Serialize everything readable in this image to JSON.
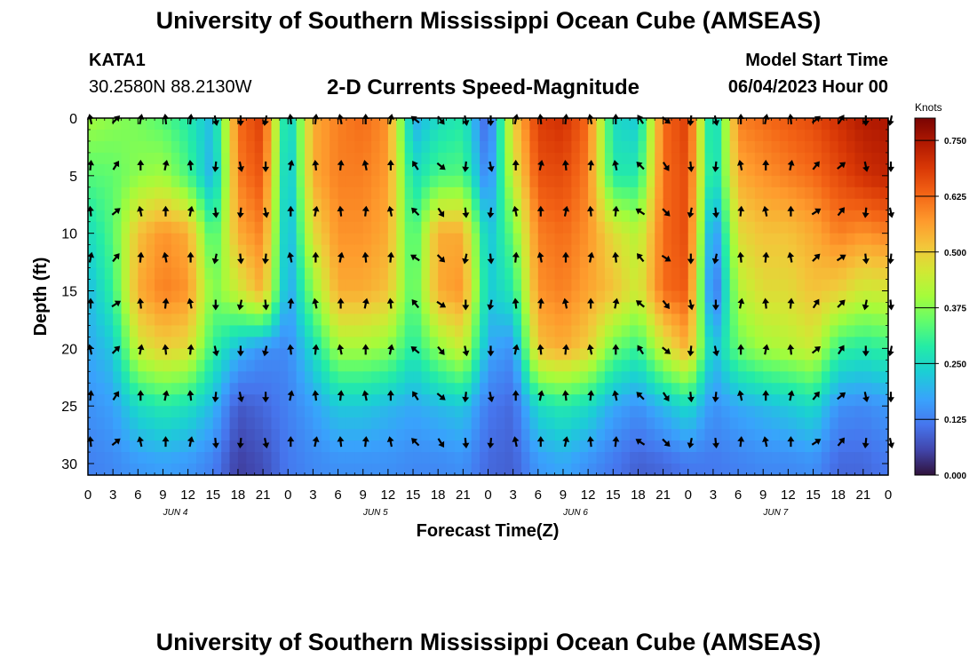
{
  "header": {
    "title": "University of Southern Mississippi Ocean Cube (AMSEAS)",
    "station": "KATA1",
    "coordinates": "30.2580N  88.2130W",
    "subtitle": "2-D Currents Speed-Magnitude",
    "model_start_label": "Model Start Time",
    "model_start_value": "06/04/2023 Hour 00"
  },
  "footer": {
    "title": "University of Southern Mississippi Ocean Cube (AMSEAS)"
  },
  "chart_data": {
    "type": "heatmap",
    "xlabel": "Forecast Time(Z)",
    "ylabel": "Depth (ft)",
    "x_range_hours": [
      0,
      96
    ],
    "x_tick_step_hours": 3,
    "x_tick_labels": [
      "0",
      "3",
      "6",
      "9",
      "12",
      "15",
      "18",
      "21",
      "0",
      "3",
      "6",
      "9",
      "12",
      "15",
      "18",
      "21",
      "0",
      "3",
      "6",
      "9",
      "12",
      "15",
      "18",
      "21",
      "0",
      "3",
      "6",
      "9",
      "12",
      "15",
      "18",
      "21",
      "0"
    ],
    "day_labels": [
      {
        "label": "JUN 4",
        "hour": 10.5
      },
      {
        "label": "JUN 5",
        "hour": 34.5
      },
      {
        "label": "JUN 6",
        "hour": 58.5
      },
      {
        "label": "JUN 7",
        "hour": 82.5
      }
    ],
    "y_range_ft": [
      0,
      31
    ],
    "y_ticks": [
      0,
      5,
      10,
      15,
      20,
      25,
      30
    ],
    "colorbar": {
      "label": "Knots",
      "min": 0.0,
      "max": 0.8,
      "ticks": [
        "0.000",
        "0.125",
        "0.250",
        "0.375",
        "0.500",
        "0.625",
        "0.750"
      ]
    },
    "speed_profiles": {
      "hours": [
        0,
        3,
        6,
        9,
        12,
        15,
        18,
        21,
        24,
        27,
        30,
        33,
        36,
        39,
        42,
        45,
        48,
        51,
        54,
        57,
        60,
        63,
        66,
        69,
        72,
        75,
        78,
        81,
        84,
        87,
        90,
        93,
        96
      ],
      "depths_ft": [
        0,
        5,
        10,
        15,
        20,
        25,
        30
      ],
      "values_knots": [
        [
          0.4,
          0.33,
          0.25,
          0.2,
          0.18,
          0.15,
          0.13
        ],
        [
          0.38,
          0.34,
          0.33,
          0.3,
          0.22,
          0.17,
          0.14
        ],
        [
          0.36,
          0.38,
          0.52,
          0.55,
          0.45,
          0.25,
          0.16
        ],
        [
          0.33,
          0.4,
          0.58,
          0.6,
          0.5,
          0.28,
          0.17
        ],
        [
          0.28,
          0.32,
          0.55,
          0.58,
          0.48,
          0.26,
          0.16
        ],
        [
          0.2,
          0.18,
          0.3,
          0.36,
          0.3,
          0.2,
          0.13
        ],
        [
          0.62,
          0.6,
          0.55,
          0.45,
          0.2,
          0.08,
          0.05
        ],
        [
          0.68,
          0.65,
          0.6,
          0.55,
          0.15,
          0.1,
          0.07
        ],
        [
          0.2,
          0.18,
          0.17,
          0.16,
          0.14,
          0.13,
          0.12
        ],
        [
          0.55,
          0.55,
          0.48,
          0.38,
          0.25,
          0.17,
          0.14
        ],
        [
          0.6,
          0.6,
          0.58,
          0.55,
          0.4,
          0.22,
          0.15
        ],
        [
          0.62,
          0.6,
          0.58,
          0.55,
          0.4,
          0.22,
          0.15
        ],
        [
          0.58,
          0.57,
          0.55,
          0.52,
          0.38,
          0.2,
          0.15
        ],
        [
          0.18,
          0.25,
          0.3,
          0.32,
          0.28,
          0.18,
          0.14
        ],
        [
          0.25,
          0.32,
          0.55,
          0.55,
          0.38,
          0.2,
          0.14
        ],
        [
          0.28,
          0.33,
          0.55,
          0.58,
          0.45,
          0.22,
          0.15
        ],
        [
          0.08,
          0.12,
          0.2,
          0.22,
          0.18,
          0.12,
          0.1
        ],
        [
          0.5,
          0.45,
          0.35,
          0.28,
          0.15,
          0.1,
          0.09
        ],
        [
          0.68,
          0.65,
          0.6,
          0.58,
          0.52,
          0.25,
          0.16
        ],
        [
          0.7,
          0.66,
          0.62,
          0.6,
          0.55,
          0.28,
          0.18
        ],
        [
          0.62,
          0.6,
          0.58,
          0.56,
          0.5,
          0.25,
          0.15
        ],
        [
          0.25,
          0.28,
          0.48,
          0.52,
          0.35,
          0.18,
          0.12
        ],
        [
          0.22,
          0.28,
          0.42,
          0.45,
          0.3,
          0.15,
          0.09
        ],
        [
          0.62,
          0.62,
          0.62,
          0.62,
          0.45,
          0.2,
          0.1
        ],
        [
          0.68,
          0.66,
          0.66,
          0.64,
          0.55,
          0.25,
          0.12
        ],
        [
          0.2,
          0.22,
          0.12,
          0.08,
          0.2,
          0.15,
          0.12
        ],
        [
          0.6,
          0.55,
          0.48,
          0.42,
          0.35,
          0.18,
          0.13
        ],
        [
          0.62,
          0.58,
          0.52,
          0.48,
          0.4,
          0.2,
          0.14
        ],
        [
          0.64,
          0.6,
          0.52,
          0.48,
          0.42,
          0.22,
          0.14
        ],
        [
          0.66,
          0.62,
          0.55,
          0.52,
          0.45,
          0.25,
          0.15
        ],
        [
          0.7,
          0.66,
          0.6,
          0.5,
          0.3,
          0.15,
          0.1
        ],
        [
          0.74,
          0.7,
          0.58,
          0.45,
          0.28,
          0.14,
          0.1
        ],
        [
          0.75,
          0.72,
          0.6,
          0.46,
          0.3,
          0.16,
          0.12
        ]
      ]
    },
    "arrows": {
      "hours": [
        0,
        3,
        6,
        9,
        12,
        15,
        18,
        21,
        24,
        27,
        30,
        33,
        36,
        39,
        42,
        45,
        48,
        51,
        54,
        57,
        60,
        63,
        66,
        69,
        72,
        75,
        78,
        81,
        84,
        87,
        90,
        93,
        96
      ],
      "depths_ft": [
        0,
        4,
        8,
        12,
        16,
        20,
        24,
        28
      ],
      "direction_pattern": [
        "N",
        "NE",
        "N",
        "N",
        "N",
        "S",
        "S",
        "S",
        "E",
        "N",
        "N",
        "N",
        "N",
        "NW",
        "SE",
        "S",
        "S",
        "N",
        "N",
        "N",
        "N",
        "N",
        "NW",
        "SE",
        "S",
        "S",
        "N",
        "N",
        "N",
        "NE",
        "NE",
        "S",
        "S"
      ]
    }
  }
}
